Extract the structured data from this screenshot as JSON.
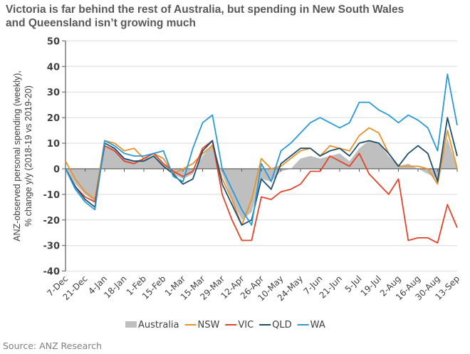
{
  "chart_data": {
    "type": "line",
    "title": "Victoria is far behind the rest of Australia, but spending in New South Wales and Queensland isn’t growing much",
    "title_lines": [
      "Victoria is far behind the rest of Australia, but spending in New South Wales",
      "and Queensland isn’t growing much"
    ],
    "ylabel_lines": [
      "ANZ-observed personal spending (weekly),",
      "% change y/y (2018-19 vs 2019-20)"
    ],
    "xlabel": "",
    "ylim": [
      -40,
      50
    ],
    "yticks": [
      -40,
      -30,
      -20,
      -10,
      0,
      10,
      20,
      30,
      40,
      50
    ],
    "grid": true,
    "legend_position": "bottom",
    "source": "Source: ANZ Research",
    "x_tick_labels": [
      "7-Dec",
      "21-Dec",
      "4-Jan",
      "18-Jan",
      "1-Feb",
      "15-Feb",
      "1-Mar",
      "15-Mar",
      "29-Mar",
      "12-Apr",
      "26-Apr",
      "10-May",
      "24-May",
      "7-Jun",
      "21-Jun",
      "5-Jul",
      "19-Jul",
      "2-Aug",
      "16-Aug",
      "30-Aug",
      "13-Sep"
    ],
    "x": [
      "7-Dec",
      "14-Dec",
      "21-Dec",
      "28-Dec",
      "4-Jan",
      "11-Jan",
      "18-Jan",
      "25-Jan",
      "1-Feb",
      "8-Feb",
      "15-Feb",
      "22-Feb",
      "1-Mar",
      "8-Mar",
      "15-Mar",
      "22-Mar",
      "29-Mar",
      "5-Apr",
      "12-Apr",
      "19-Apr",
      "26-Apr",
      "3-May",
      "10-May",
      "17-May",
      "24-May",
      "31-May",
      "7-Jun",
      "14-Jun",
      "21-Jun",
      "28-Jun",
      "5-Jul",
      "12-Jul",
      "19-Jul",
      "26-Jul",
      "2-Aug",
      "9-Aug",
      "16-Aug",
      "23-Aug",
      "30-Aug",
      "6-Sep",
      "13-Sep"
    ],
    "series": [
      {
        "name": "Australia",
        "kind": "area",
        "color": "#bfbfbf",
        "values": [
          0,
          -6,
          -10,
          -13,
          9,
          8,
          4,
          3,
          4,
          5,
          2,
          -2,
          -4,
          -2,
          5,
          10,
          -2,
          -12,
          -20,
          -17,
          -4,
          -5,
          -1,
          0,
          4,
          5,
          4,
          5,
          6,
          3,
          8,
          11,
          10,
          5,
          1,
          2,
          0,
          -2,
          -4,
          12,
          0
        ]
      },
      {
        "name": "NSW",
        "kind": "line",
        "color": "#e8922a",
        "values": [
          3,
          -4,
          -9,
          -12,
          11,
          10,
          7,
          8,
          4,
          6,
          4,
          -2,
          0,
          2,
          6,
          9,
          -4,
          -12,
          -22,
          -12,
          4,
          0,
          1,
          4,
          7,
          8,
          5,
          9,
          8,
          7,
          13,
          16,
          14,
          6,
          1,
          1,
          1,
          0,
          -6,
          15,
          0
        ]
      },
      {
        "name": "VIC",
        "kind": "line",
        "color": "#e0452a",
        "values": [
          0,
          -7,
          -11,
          -13,
          9,
          7,
          3,
          2,
          4,
          6,
          2,
          -1,
          -3,
          -1,
          8,
          11,
          -10,
          -20,
          -28,
          -28,
          -11,
          -12,
          -9,
          -8,
          -6,
          -1,
          -1,
          5,
          3,
          1,
          6,
          -2,
          -6,
          -10,
          -4,
          -28,
          -27,
          -27,
          -29,
          -14,
          -23
        ]
      },
      {
        "name": "QLD",
        "kind": "line",
        "color": "#1f4e6e",
        "values": [
          0,
          -7,
          -12,
          -15,
          10,
          8,
          4,
          3,
          3,
          5,
          1,
          -2,
          -6,
          -4,
          7,
          11,
          -6,
          -14,
          -22,
          -20,
          -4,
          -8,
          2,
          5,
          8,
          8,
          5,
          7,
          8,
          5,
          10,
          11,
          10,
          6,
          1,
          6,
          9,
          6,
          -5,
          20,
          5
        ]
      },
      {
        "name": "WA",
        "kind": "line",
        "color": "#2a9ad6",
        "values": [
          0,
          -8,
          -13,
          -16,
          11,
          9,
          6,
          5,
          5,
          6,
          7,
          -3,
          -5,
          8,
          18,
          21,
          0,
          -8,
          -16,
          -22,
          2,
          -5,
          7,
          10,
          14,
          18,
          20,
          18,
          16,
          18,
          26,
          26,
          23,
          21,
          18,
          21,
          19,
          16,
          7,
          37,
          17
        ]
      }
    ]
  }
}
